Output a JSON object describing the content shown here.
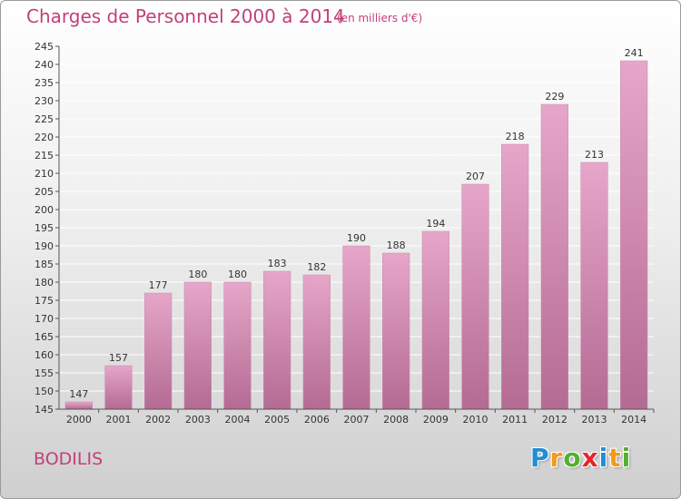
{
  "chart_data": {
    "type": "bar",
    "title": "Charges de Personnel 2000 à 2014",
    "subtitle": "(en milliers d'€)",
    "categories": [
      "2000",
      "2001",
      "2002",
      "2003",
      "2004",
      "2005",
      "2006",
      "2007",
      "2008",
      "2009",
      "2010",
      "2011",
      "2012",
      "2013",
      "2014"
    ],
    "values": [
      147,
      157,
      177,
      180,
      180,
      183,
      182,
      190,
      188,
      194,
      207,
      218,
      229,
      213,
      241
    ],
    "ylim": [
      145,
      245
    ],
    "yticks": [
      145,
      150,
      155,
      160,
      165,
      170,
      175,
      180,
      185,
      190,
      195,
      200,
      205,
      210,
      215,
      220,
      225,
      230,
      235,
      240,
      245
    ],
    "grid": true,
    "bar_color": "#d98ab4"
  },
  "footer": {
    "commune": "BODILIS",
    "logo_letters": [
      {
        "char": "P",
        "color": "#1f8fd6"
      },
      {
        "char": "r",
        "color": "#f29a1a"
      },
      {
        "char": "o",
        "color": "#53b030"
      },
      {
        "char": "x",
        "color": "#e3262e"
      },
      {
        "char": "i",
        "color": "#1f8fd6"
      },
      {
        "char": "t",
        "color": "#f29a1a"
      },
      {
        "char": "i",
        "color": "#53b030"
      }
    ]
  }
}
